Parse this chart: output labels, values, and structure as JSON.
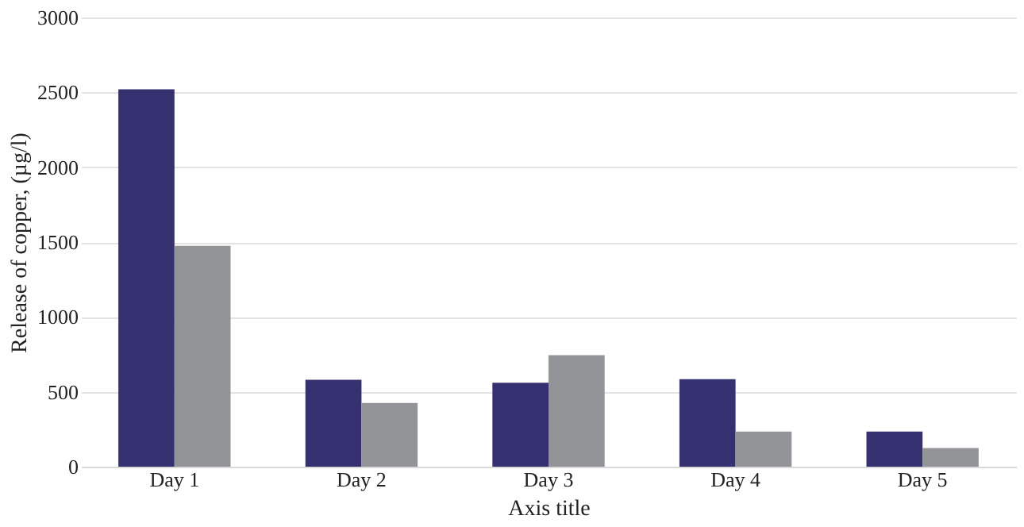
{
  "chart_data": {
    "type": "bar",
    "xlabel": "Axis title",
    "ylabel": "Release of copper, (µg/l)",
    "categories": [
      "Day 1",
      "Day 2",
      "Day 3",
      "Day 4",
      "Day 5"
    ],
    "series": [
      {
        "color": "#35306f",
        "values": [
          2520,
          580,
          560,
          585,
          235
        ]
      },
      {
        "color": "#939498",
        "values": [
          1475,
          425,
          745,
          235,
          125
        ]
      }
    ],
    "ylim": [
      0,
      3000
    ],
    "yticks": [
      0,
      500,
      1000,
      1500,
      2000,
      2500,
      3000
    ],
    "grid": "y"
  }
}
